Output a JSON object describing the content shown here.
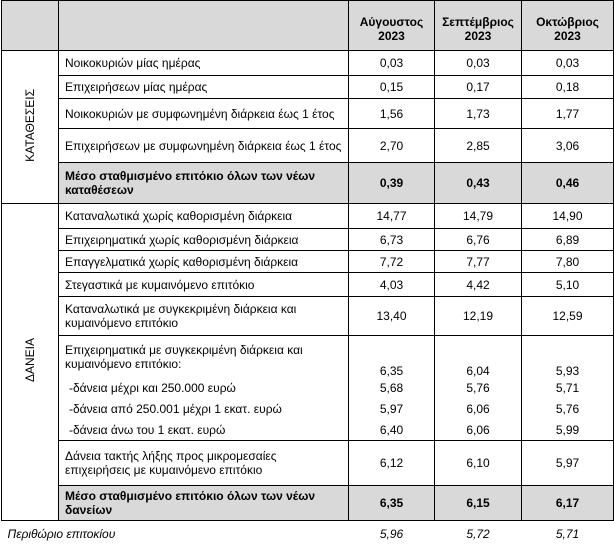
{
  "header": {
    "columns": [
      {
        "month": "Αύγουστος",
        "year": "2023"
      },
      {
        "month": "Σεπτέμβριος",
        "year": "2023"
      },
      {
        "month": "Οκτώβριος",
        "year": "2023"
      }
    ]
  },
  "groups": [
    {
      "label": "ΚΑΤΑΘΕΣΕΙΣ",
      "rows": [
        {
          "label": "Νοικοκυριών μίας ημέρας",
          "values": [
            "0,03",
            "0,03",
            "0,03"
          ]
        },
        {
          "label": "Επιχειρήσεων μίας ημέρας",
          "values": [
            "0,15",
            "0,17",
            "0,18"
          ]
        },
        {
          "label": "Νοικοκυριών με συμφωνημένη διάρκεια έως 1 έτος",
          "values": [
            "1,56",
            "1,73",
            "1,77"
          ]
        },
        {
          "label": "Επιχειρήσεων με συμφωνημένη διάρκεια έως 1 έτος",
          "values": [
            "2,70",
            "2,85",
            "3,06"
          ]
        },
        {
          "label": "Μέσο σταθμισμένο επιτόκιο όλων των νέων καταθέσεων",
          "values": [
            "0,39",
            "0,43",
            "0,46"
          ],
          "emphasis": true
        }
      ]
    },
    {
      "label": "ΔΑΝΕΙΑ",
      "rows": [
        {
          "label": "Καταναλωτικά χωρίς καθορισμένη διάρκεια",
          "values": [
            "14,77",
            "14,79",
            "14,90"
          ]
        },
        {
          "label": "Επιχειρηματικά χωρίς καθορισμένη διάρκεια",
          "values": [
            "6,73",
            "6,76",
            "6,89"
          ]
        },
        {
          "label": "Επαγγελματικά χωρίς καθορισμένη διάρκεια",
          "values": [
            "7,72",
            "7,77",
            "7,80"
          ]
        },
        {
          "label": "Στεγαστικά με κυμαινόμενο επιτόκιο",
          "values": [
            "4,03",
            "4,42",
            "5,10"
          ]
        },
        {
          "label": "Καταναλωτικά με συγκεκριμένη διάρκεια και κυμαινόμενο επιτόκιο",
          "values": [
            "13,40",
            "12,19",
            "12,59"
          ]
        },
        {
          "label": "Επιχειρηματικά με συγκεκριμένη διάρκεια και κυμαινόμενο επιτόκιο:",
          "values": [
            "6,35",
            "6,04",
            "5,93"
          ],
          "subrows": [
            {
              "label": "-δάνεια μέχρι και 250.000 ευρώ",
              "values": [
                "5,68",
                "5,76",
                "5,71"
              ]
            },
            {
              "label": "-δάνεια από 250.001 μέχρι 1 εκατ. ευρώ",
              "values": [
                "5,97",
                "6,06",
                "5,76"
              ]
            },
            {
              "label": "-δάνεια άνω του 1 εκατ. ευρώ",
              "values": [
                "6,40",
                "6,06",
                "5,99"
              ]
            }
          ]
        },
        {
          "label": "Δάνεια τακτής λήξης προς μικρομεσαίες επιχειρήσεις με κυμαινόμενο επιτόκιο",
          "values": [
            "6,12",
            "6,10",
            "5,97"
          ]
        },
        {
          "label": "Μέσο σταθμισμένο επιτόκιο όλων των νέων δανείων",
          "values": [
            "6,35",
            "6,15",
            "6,17"
          ],
          "emphasis": true
        }
      ]
    }
  ],
  "footer": {
    "label": "Περιθώριο επιτοκίου",
    "values": [
      "5,96",
      "5,72",
      "5,71"
    ]
  }
}
